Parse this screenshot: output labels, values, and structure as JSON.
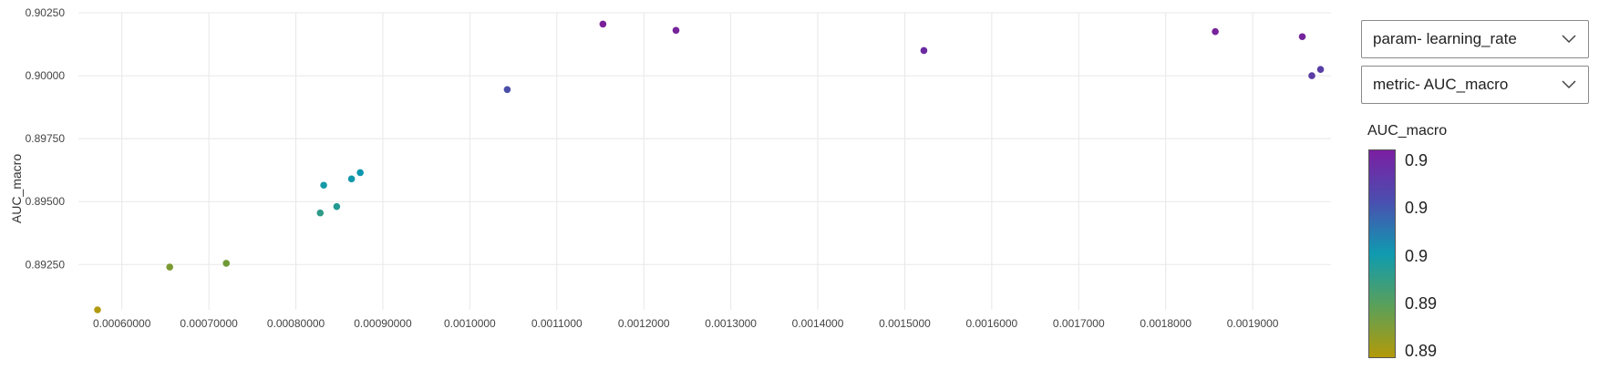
{
  "chart_data": {
    "type": "scatter",
    "xlabel": "learning_rate",
    "ylabel": "AUC_macro",
    "xlim": [
      0.00055,
      0.00199
    ],
    "ylim": [
      0.8907,
      0.9025
    ],
    "x_ticks": [
      "0.00060000",
      "0.00070000",
      "0.00080000",
      "0.00090000",
      "0.0010000",
      "0.0011000",
      "0.0012000",
      "0.0013000",
      "0.0014000",
      "0.0015000",
      "0.0016000",
      "0.0017000",
      "0.0018000",
      "0.0019000"
    ],
    "x_tick_values": [
      0.0006,
      0.0007,
      0.0008,
      0.0009,
      0.001,
      0.0011,
      0.0012,
      0.0013,
      0.0014,
      0.0015,
      0.0016,
      0.0017,
      0.0018,
      0.0019
    ],
    "y_ticks": [
      "0.90250",
      "0.90000",
      "0.89750",
      "0.89500",
      "0.89250"
    ],
    "y_tick_values": [
      0.9025,
      0.9,
      0.8975,
      0.895,
      0.8925
    ],
    "grid": true,
    "points": [
      {
        "x": 0.000572,
        "y": 0.8907,
        "color": "#b09a10"
      },
      {
        "x": 0.000655,
        "y": 0.8924,
        "color": "#7a9a30"
      },
      {
        "x": 0.00072,
        "y": 0.89255,
        "color": "#6f9a38"
      },
      {
        "x": 0.000828,
        "y": 0.89455,
        "color": "#2e9a88"
      },
      {
        "x": 0.000832,
        "y": 0.89565,
        "color": "#169aa8"
      },
      {
        "x": 0.000847,
        "y": 0.8948,
        "color": "#259a92"
      },
      {
        "x": 0.000864,
        "y": 0.8959,
        "color": "#1298aa"
      },
      {
        "x": 0.000874,
        "y": 0.89615,
        "color": "#0d97ae"
      },
      {
        "x": 0.001043,
        "y": 0.89945,
        "color": "#4a4ea8"
      },
      {
        "x": 0.001153,
        "y": 0.90205,
        "color": "#7a2098"
      },
      {
        "x": 0.001237,
        "y": 0.9018,
        "color": "#76249a"
      },
      {
        "x": 0.001522,
        "y": 0.901,
        "color": "#6a2aa0"
      },
      {
        "x": 0.001857,
        "y": 0.90175,
        "color": "#77239a"
      },
      {
        "x": 0.001957,
        "y": 0.90155,
        "color": "#74259b"
      },
      {
        "x": 0.001968,
        "y": 0.9,
        "color": "#5a3ca4"
      },
      {
        "x": 0.001978,
        "y": 0.90025,
        "color": "#583ea6"
      }
    ]
  },
  "controls": {
    "param_select": "param- learning_rate",
    "metric_select": "metric- AUC_macro"
  },
  "legend": {
    "title": "AUC_macro",
    "ticks": [
      "0.9",
      "0.9",
      "0.9",
      "0.89",
      "0.89"
    ],
    "colors": [
      "#7b1fa2",
      "#4a4fb0",
      "#0f9bb0",
      "#5aa05a",
      "#b39a08"
    ]
  }
}
